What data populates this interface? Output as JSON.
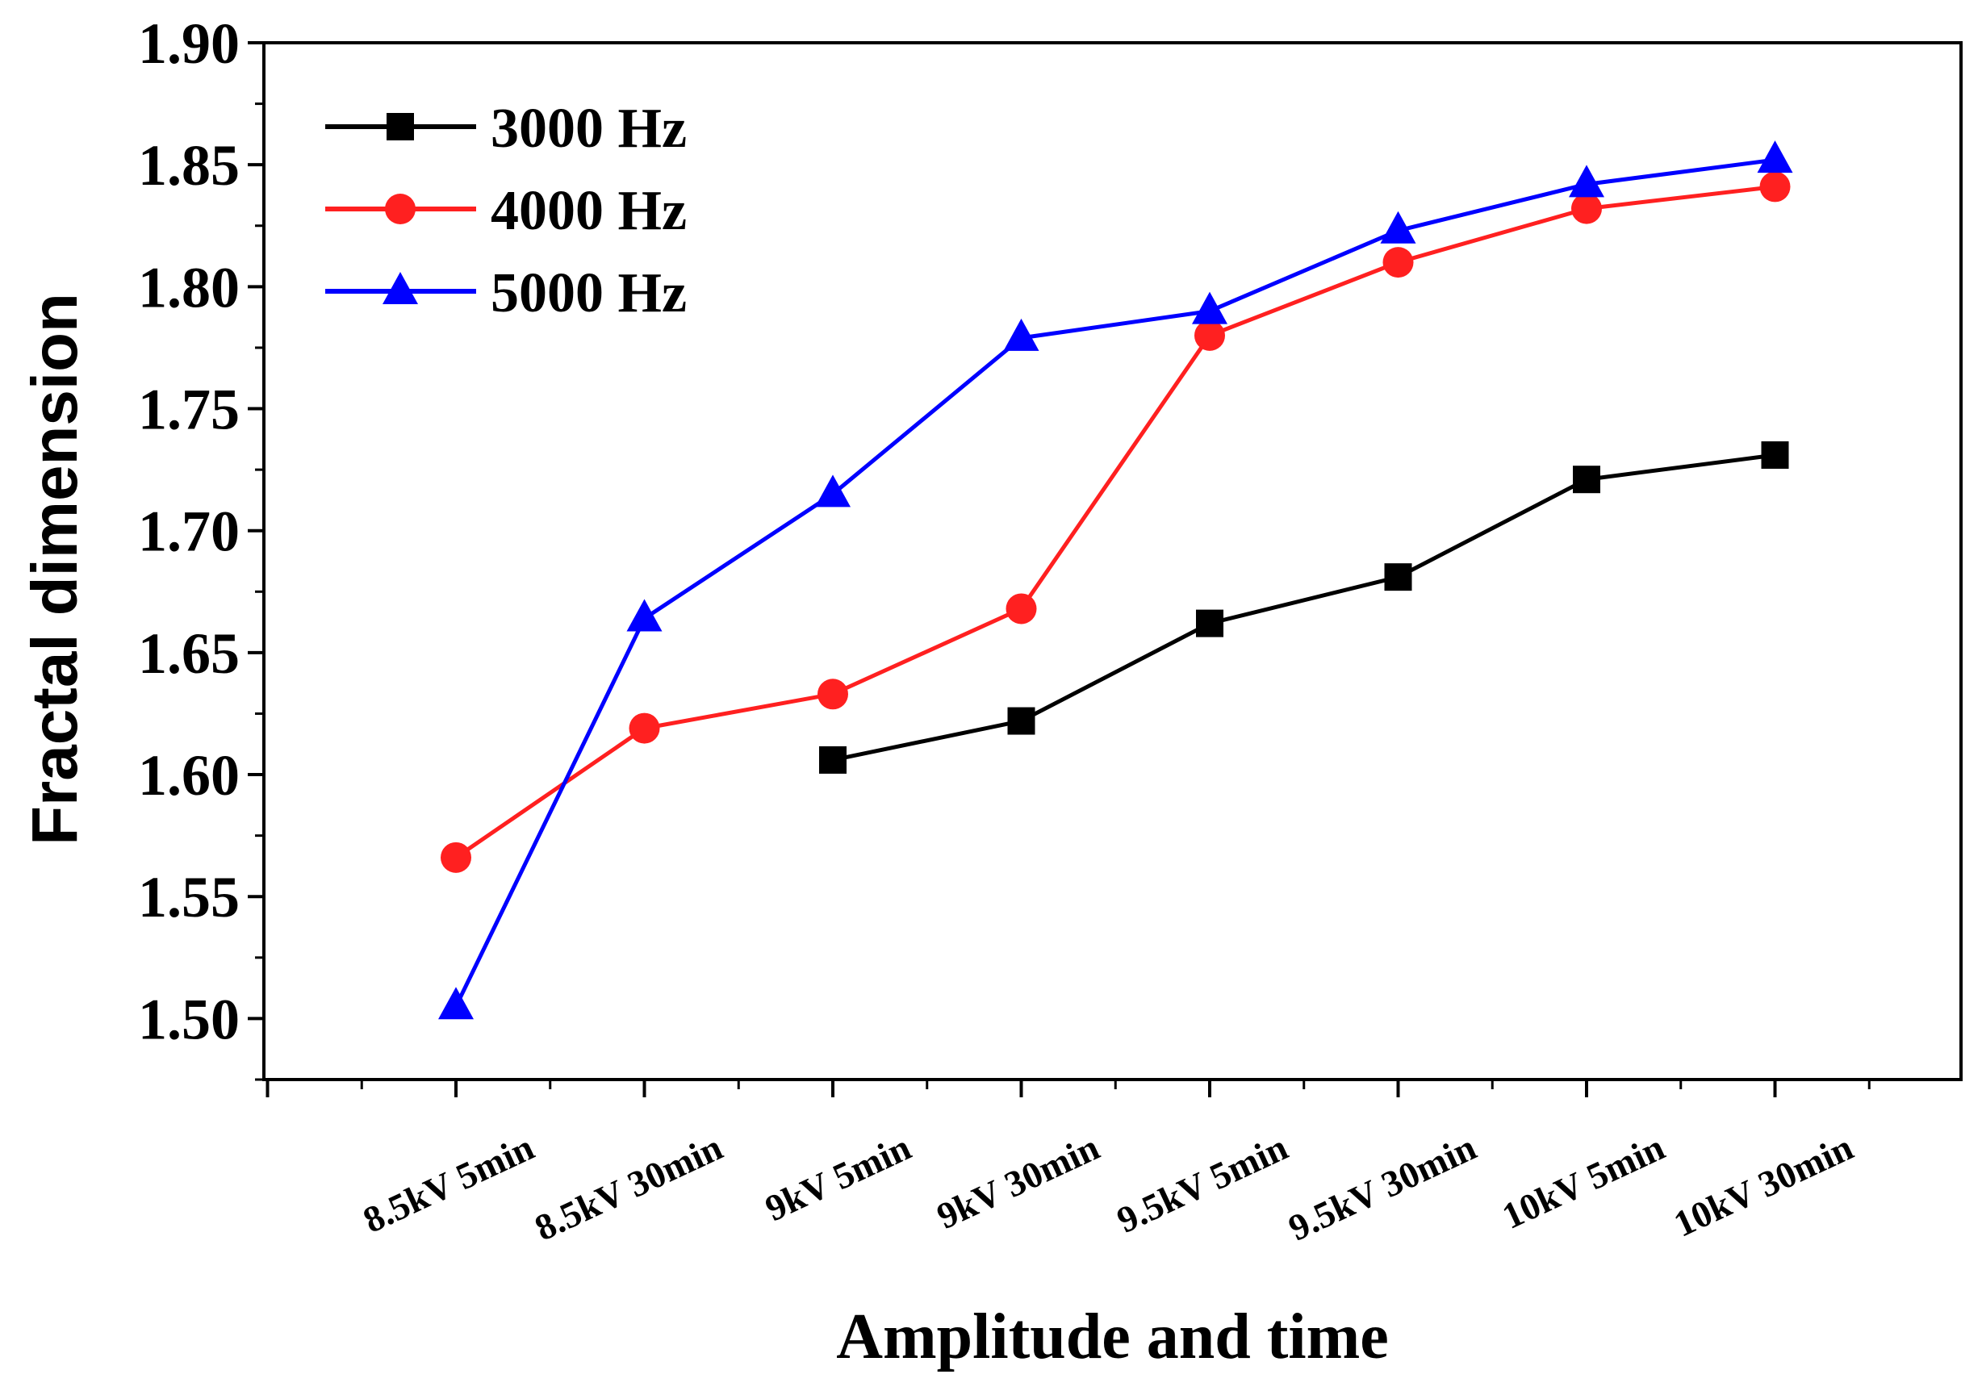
{
  "chart_data": {
    "type": "line",
    "title": "",
    "xlabel": "Amplitude and time",
    "ylabel": "Fractal dimension",
    "categories": [
      "8.5kV 5min",
      "8.5kV 30min",
      "9kV 5min",
      "9kV 30min",
      "9.5kV 5min",
      "9.5kV 30min",
      "10kV 5min",
      "10kV 30min"
    ],
    "ylim": [
      1.475,
      1.9
    ],
    "yticks": [
      "1.50",
      "1.55",
      "1.60",
      "1.65",
      "1.70",
      "1.75",
      "1.80",
      "1.85",
      "1.90"
    ],
    "legend_position": "top-left",
    "grid": false,
    "series": [
      {
        "name": "3000 Hz",
        "color": "#000000",
        "marker": "square",
        "values": [
          null,
          null,
          1.606,
          1.622,
          1.662,
          1.681,
          1.721,
          1.731
        ]
      },
      {
        "name": "4000 Hz",
        "color": "#ff2020",
        "marker": "circle",
        "values": [
          1.566,
          1.619,
          1.633,
          1.668,
          1.78,
          1.81,
          1.832,
          1.841
        ]
      },
      {
        "name": "5000 Hz",
        "color": "#0000ff",
        "marker": "triangle",
        "values": [
          1.505,
          1.664,
          1.715,
          1.779,
          1.79,
          1.823,
          1.842,
          1.852
        ]
      }
    ]
  }
}
